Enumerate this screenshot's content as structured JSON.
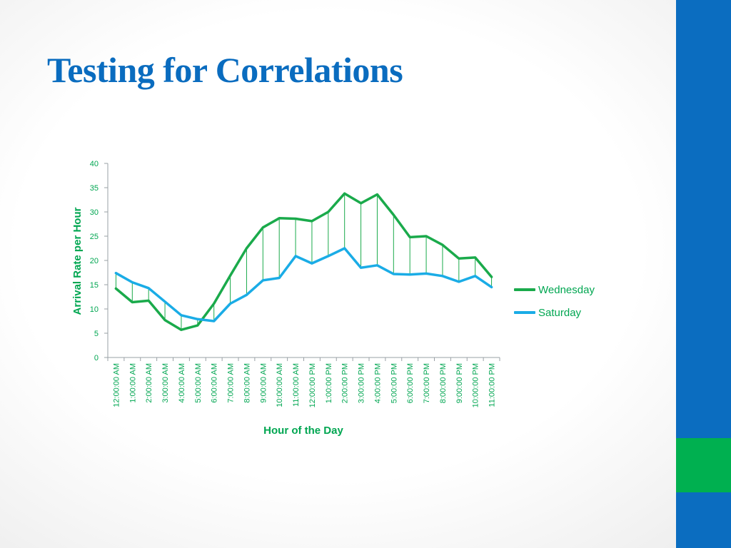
{
  "slide": {
    "title": "Testing for Correlations"
  },
  "colors": {
    "title": "#0a6cbf",
    "sidebar": "#0b6dc0",
    "sidebar_accent": "#00b050",
    "axis_text": "#00a651"
  },
  "chart_data": {
    "type": "line",
    "title": "",
    "xlabel": "Hour of the Day",
    "ylabel": "Arrival Rate per Hour",
    "ylim": [
      0,
      40
    ],
    "yticks": [
      0,
      5,
      10,
      15,
      20,
      25,
      30,
      35,
      40
    ],
    "grid": false,
    "legend_position": "right",
    "drop_lines": true,
    "categories": [
      "12:00:00 AM",
      "1:00:00 AM",
      "2:00:00 AM",
      "3:00:00 AM",
      "4:00:00 AM",
      "5:00:00 AM",
      "6:00:00 AM",
      "7:00:00 AM",
      "8:00:00 AM",
      "9:00:00 AM",
      "10:00:00 AM",
      "11:00:00 AM",
      "12:00:00 PM",
      "1:00:00 PM",
      "2:00:00 PM",
      "3:00:00 PM",
      "4:00:00 PM",
      "5:00:00 PM",
      "6:00:00 PM",
      "7:00:00 PM",
      "8:00:00 PM",
      "9:00:00 PM",
      "10:00:00 PM",
      "11:00:00 PM"
    ],
    "series": [
      {
        "name": "Wednesday",
        "color": "#1aaa4b",
        "values": [
          14.2,
          11.4,
          11.7,
          7.7,
          5.7,
          6.6,
          11.1,
          16.9,
          22.5,
          26.8,
          28.7,
          28.6,
          28.1,
          30.0,
          33.8,
          31.8,
          33.6,
          29.4,
          24.8,
          25.0,
          23.2,
          20.4,
          20.6,
          16.6
        ]
      },
      {
        "name": "Saturday",
        "color": "#1aace6",
        "values": [
          17.4,
          15.5,
          14.3,
          11.5,
          8.7,
          7.9,
          7.5,
          11.1,
          12.9,
          15.9,
          16.4,
          20.9,
          19.4,
          20.9,
          22.5,
          18.5,
          19.0,
          17.2,
          17.1,
          17.3,
          16.8,
          15.6,
          16.8,
          14.5
        ]
      }
    ]
  }
}
